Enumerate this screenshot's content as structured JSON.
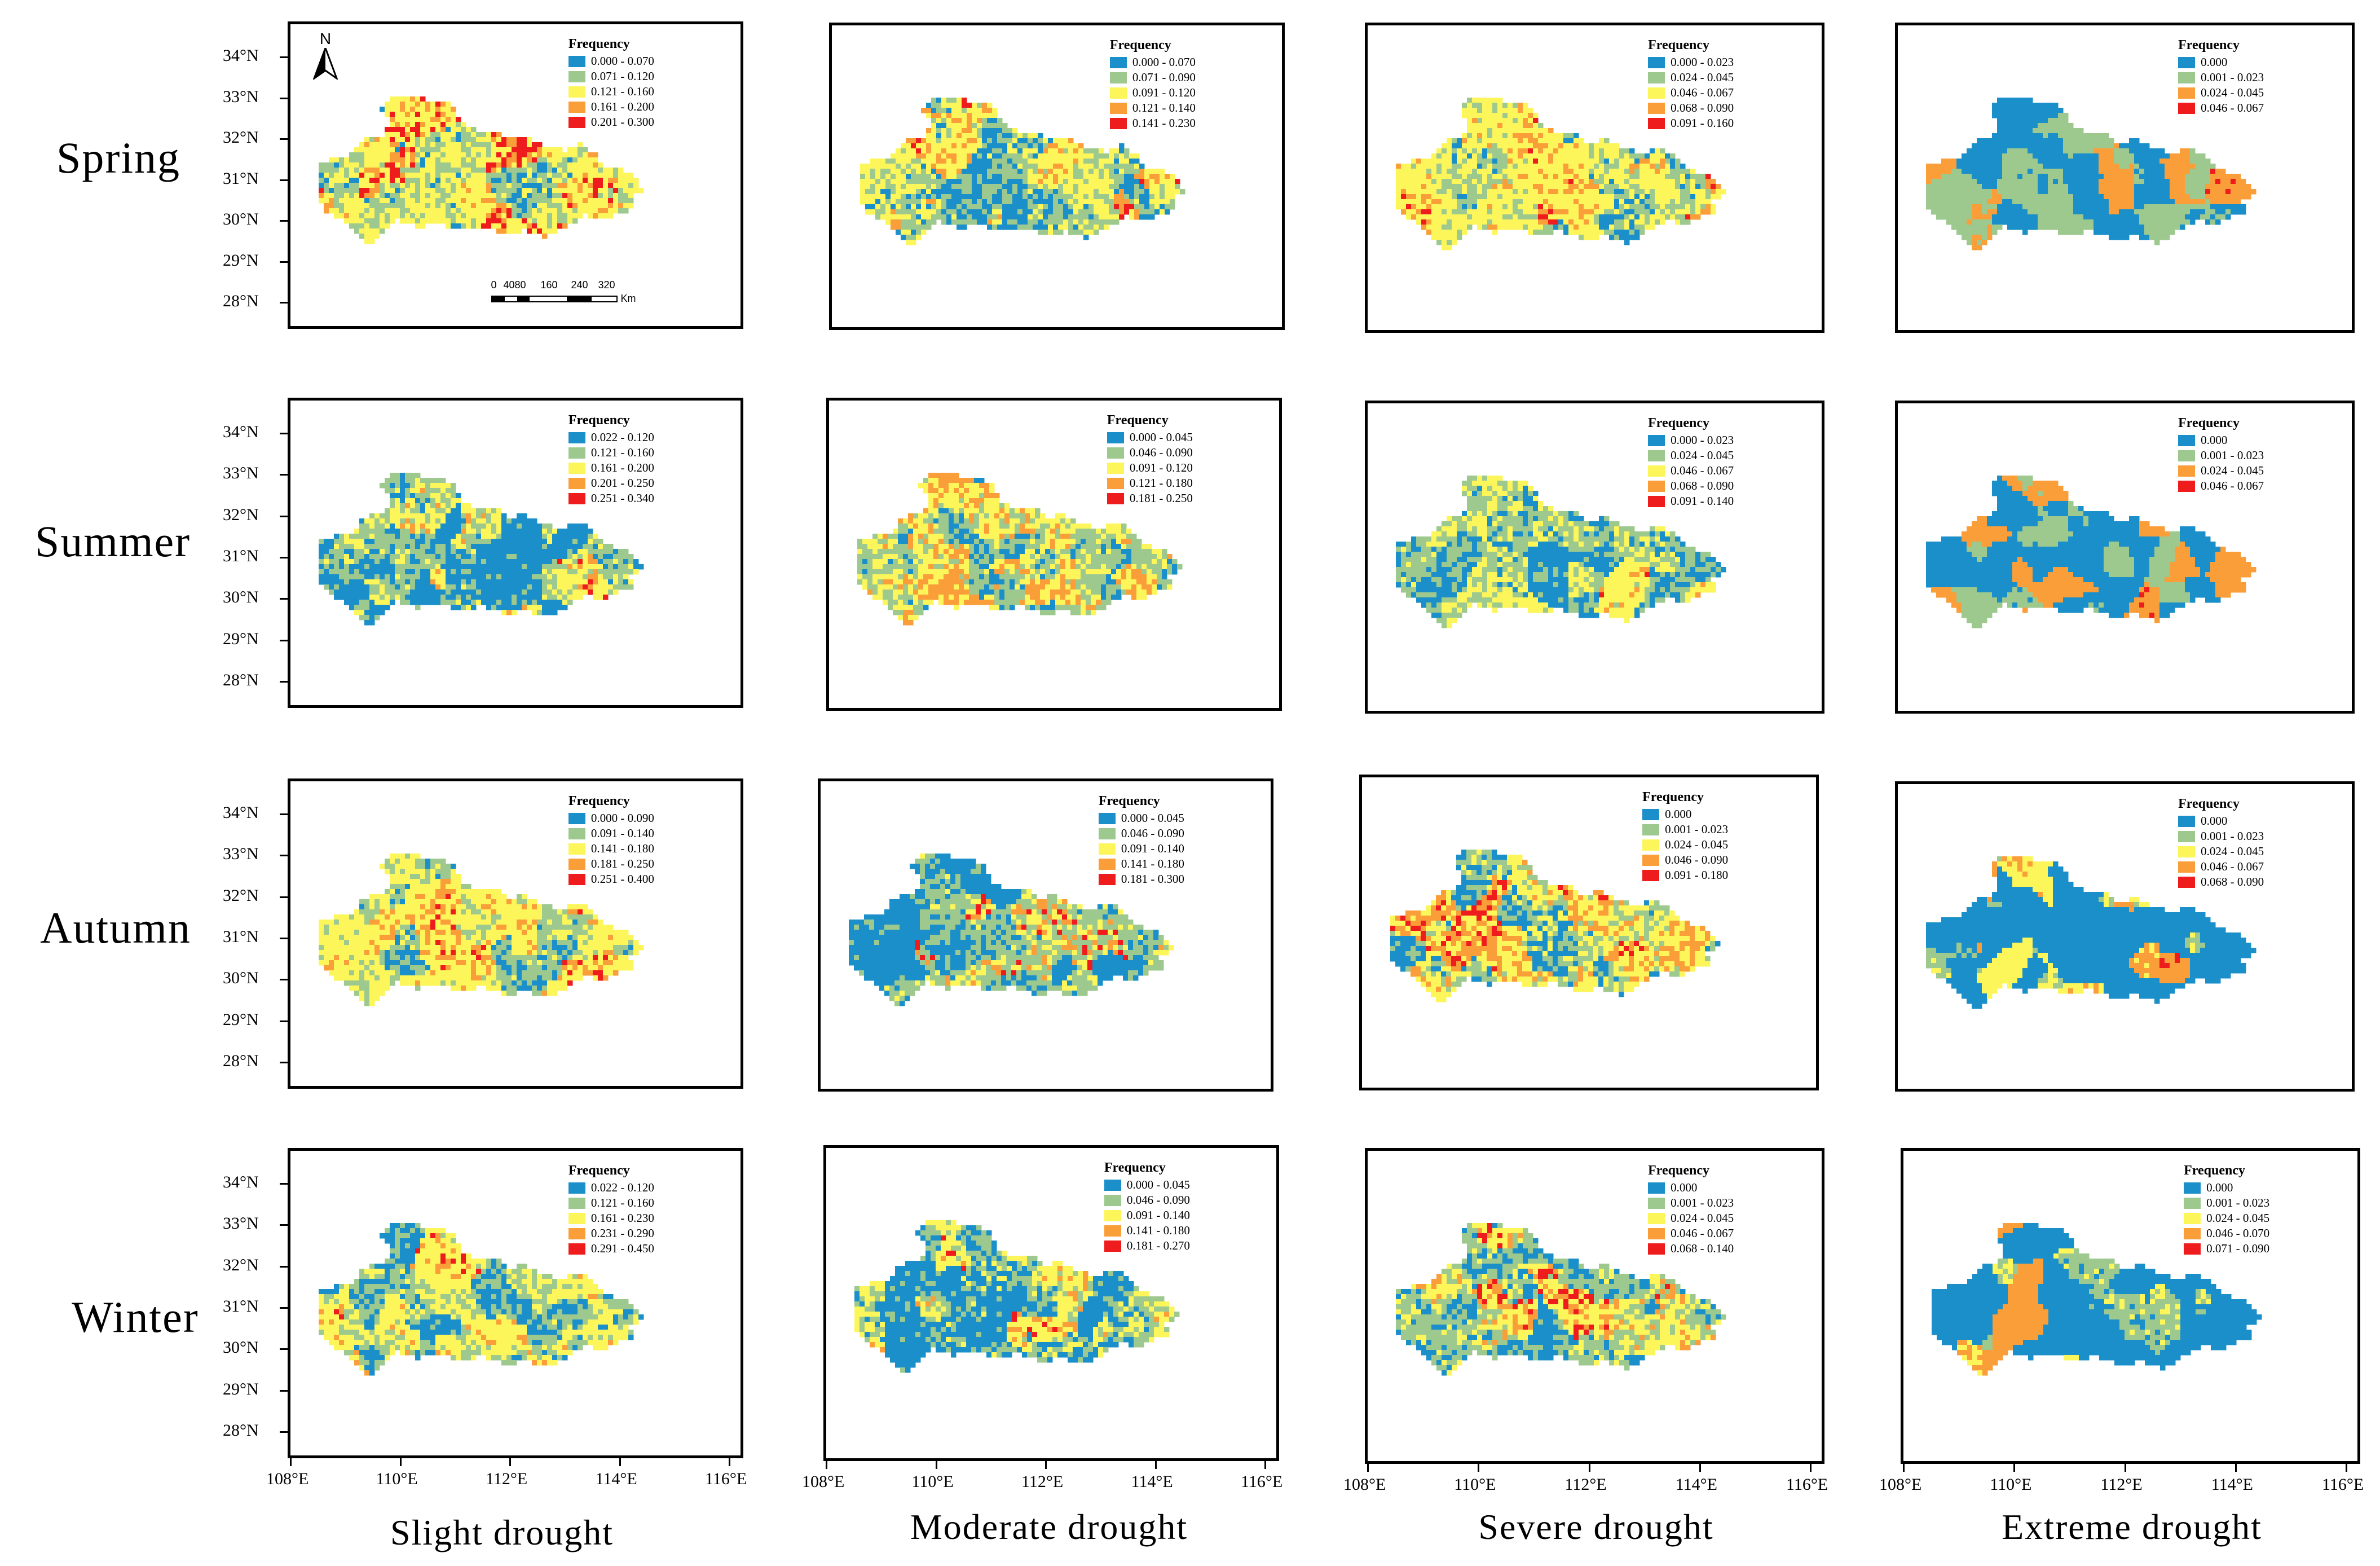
{
  "seasons": [
    "Spring",
    "Summer",
    "Autumn",
    "Winter"
  ],
  "drought_levels": [
    "Slight drought",
    "Moderate drought",
    "Severe drought",
    "Extreme drought"
  ],
  "legend_title": "Frequency",
  "lat_ticks": [
    "34°N",
    "33°N",
    "32°N",
    "31°N",
    "30°N",
    "29°N",
    "28°N"
  ],
  "lon_ticks": [
    "108°E",
    "110°E",
    "112°E",
    "114°E",
    "116°E"
  ],
  "north_label": "N",
  "scale_numbers": [
    "0",
    "40",
    "80",
    "160",
    "240",
    "320"
  ],
  "scale_unit": "Km",
  "palette": {
    "blue": "#1a8fc9",
    "green": "#9dc98e",
    "yellow": "#fcf65a",
    "orange": "#fa9e3a",
    "red": "#ee1c1c"
  },
  "legends": {
    "spring": [
      [
        "0.000 - 0.070",
        "0.071 - 0.120",
        "0.121 - 0.160",
        "0.161 - 0.200",
        "0.201 - 0.300"
      ],
      [
        "0.000 - 0.070",
        "0.071 - 0.090",
        "0.091 - 0.120",
        "0.121 - 0.140",
        "0.141 - 0.230"
      ],
      [
        "0.000 - 0.023",
        "0.024 - 0.045",
        "0.046 - 0.067",
        "0.068 - 0.090",
        "0.091 - 0.160"
      ],
      [
        "0.000",
        "0.001 - 0.023",
        "0.024 - 0.045",
        "0.046 - 0.067"
      ]
    ],
    "summer": [
      [
        "0.022 - 0.120",
        "0.121 - 0.160",
        "0.161 - 0.200",
        "0.201 - 0.250",
        "0.251 - 0.340"
      ],
      [
        "0.000 - 0.045",
        "0.046 - 0.090",
        "0.091 - 0.120",
        "0.121 - 0.180",
        "0.181 - 0.250"
      ],
      [
        "0.000 - 0.023",
        "0.024 - 0.045",
        "0.046 - 0.067",
        "0.068 - 0.090",
        "0.091 - 0.140"
      ],
      [
        "0.000",
        "0.001 - 0.023",
        "0.024 - 0.045",
        "0.046 - 0.067"
      ]
    ],
    "autumn": [
      [
        "0.000 - 0.090",
        "0.091 - 0.140",
        "0.141 - 0.180",
        "0.181 - 0.250",
        "0.251 - 0.400"
      ],
      [
        "0.000 - 0.045",
        "0.046 - 0.090",
        "0.091 - 0.140",
        "0.141 - 0.180",
        "0.181 - 0.300"
      ],
      [
        "0.000",
        "0.001 - 0.023",
        "0.024 - 0.045",
        "0.046 - 0.090",
        "0.091 - 0.180"
      ],
      [
        "0.000",
        "0.001 - 0.023",
        "0.024 - 0.045",
        "0.046 - 0.067",
        "0.068 - 0.090"
      ]
    ],
    "winter": [
      [
        "0.022 - 0.120",
        "0.121 - 0.160",
        "0.161 - 0.230",
        "0.231 - 0.290",
        "0.291 - 0.450"
      ],
      [
        "0.000 - 0.045",
        "0.046 - 0.090",
        "0.091 - 0.140",
        "0.141 - 0.180",
        "0.181 - 0.270"
      ],
      [
        "0.000",
        "0.001 - 0.023",
        "0.024 - 0.045",
        "0.046 - 0.067",
        "0.068 - 0.140"
      ],
      [
        "0.000",
        "0.001 - 0.023",
        "0.024 - 0.045",
        "0.046 - 0.070",
        "0.071 - 0.090"
      ]
    ]
  },
  "legend_colors": {
    "five": [
      "#1a8fc9",
      "#9dc98e",
      "#fcf65a",
      "#fa9e3a",
      "#ee1c1c"
    ],
    "four_extreme": [
      "#1a8fc9",
      "#9dc98e",
      "#fa9e3a",
      "#ee1c1c"
    ]
  },
  "dominant_mix": {
    "spring": [
      [
        0.14,
        0.2,
        0.34,
        0.12,
        0.2
      ],
      [
        0.32,
        0.18,
        0.26,
        0.14,
        0.1
      ],
      [
        0.3,
        0.2,
        0.3,
        0.12,
        0.08
      ],
      [
        0.4,
        0.42,
        0.0,
        0.15,
        0.03
      ]
    ],
    "summer": [
      [
        0.42,
        0.24,
        0.22,
        0.08,
        0.04
      ],
      [
        0.24,
        0.26,
        0.2,
        0.26,
        0.04
      ],
      [
        0.36,
        0.22,
        0.32,
        0.06,
        0.04
      ],
      [
        0.52,
        0.22,
        0.0,
        0.24,
        0.02
      ]
    ],
    "autumn": [
      [
        0.22,
        0.26,
        0.32,
        0.1,
        0.1
      ],
      [
        0.48,
        0.26,
        0.12,
        0.06,
        0.08
      ],
      [
        0.3,
        0.16,
        0.22,
        0.16,
        0.16
      ],
      [
        0.66,
        0.07,
        0.1,
        0.16,
        0.01
      ]
    ],
    "winter": [
      [
        0.32,
        0.22,
        0.32,
        0.08,
        0.06
      ],
      [
        0.44,
        0.16,
        0.26,
        0.06,
        0.08
      ],
      [
        0.34,
        0.24,
        0.2,
        0.1,
        0.12
      ],
      [
        0.68,
        0.06,
        0.12,
        0.14,
        0.0
      ]
    ]
  }
}
